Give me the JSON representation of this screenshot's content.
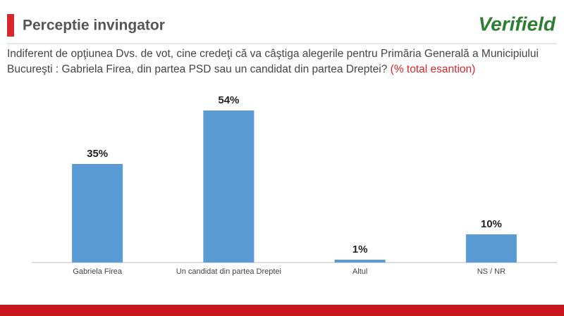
{
  "header": {
    "title": "Perceptie invingator",
    "logo": "Verifield"
  },
  "chart_data": {
    "type": "bar",
    "subtitle": "Indiferent de opţiunea Dvs. de vot, cine credeţi că va câştiga alegerile pentru Primăria Generală  a Municipiului Bucureşti : Gabriela Firea, din partea PSD sau un candidat din partea Dreptei?",
    "note": "(% total esantion)",
    "categories": [
      "Gabriela Firea",
      "Un candidat din partea Dreptei",
      "Altul",
      "NS / NR"
    ],
    "values": [
      35,
      54,
      1,
      10
    ],
    "value_labels": [
      "35%",
      "54%",
      "1%",
      "10%"
    ],
    "color": "#5b9bd5"
  }
}
